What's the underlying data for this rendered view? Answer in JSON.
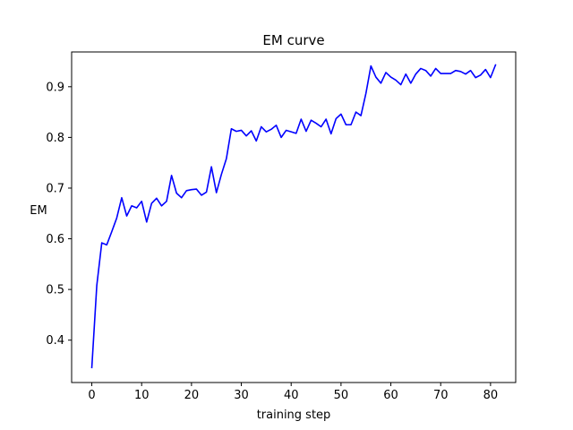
{
  "chart_data": {
    "type": "line",
    "title": "EM curve",
    "xlabel": "training step",
    "ylabel": "EM",
    "xlim": [
      -4.05,
      85.05
    ],
    "ylim": [
      0.3164,
      0.9686
    ],
    "xticks": [
      0,
      10,
      20,
      30,
      40,
      50,
      60,
      70,
      80
    ],
    "yticks": [
      0.4,
      0.5,
      0.6,
      0.7,
      0.8,
      0.9
    ],
    "ytick_labels": [
      "0.4",
      "0.5",
      "0.6",
      "0.7",
      "0.8",
      "0.9"
    ],
    "grid": false,
    "series": [
      {
        "color": "#0000ff",
        "x": [
          0,
          1,
          2,
          3,
          4,
          5,
          6,
          7,
          8,
          9,
          10,
          11,
          12,
          13,
          14,
          15,
          16,
          17,
          18,
          19,
          20,
          21,
          22,
          23,
          24,
          25,
          26,
          27,
          28,
          29,
          30,
          31,
          32,
          33,
          34,
          35,
          36,
          37,
          38,
          39,
          40,
          41,
          42,
          43,
          44,
          45,
          46,
          47,
          48,
          49,
          50,
          51,
          52,
          53,
          54,
          55,
          56,
          57,
          58,
          59,
          60,
          61,
          62,
          63,
          64,
          65,
          66,
          67,
          68,
          69,
          70,
          71,
          72,
          73,
          74,
          75,
          76,
          77,
          78,
          79,
          80,
          81
        ],
        "y": [
          0.346,
          0.508,
          0.592,
          0.588,
          0.614,
          0.641,
          0.681,
          0.645,
          0.665,
          0.661,
          0.674,
          0.633,
          0.67,
          0.68,
          0.665,
          0.674,
          0.725,
          0.69,
          0.681,
          0.695,
          0.697,
          0.698,
          0.686,
          0.692,
          0.742,
          0.691,
          0.727,
          0.758,
          0.817,
          0.812,
          0.814,
          0.803,
          0.813,
          0.793,
          0.821,
          0.811,
          0.816,
          0.824,
          0.8,
          0.814,
          0.811,
          0.808,
          0.836,
          0.812,
          0.834,
          0.828,
          0.821,
          0.836,
          0.807,
          0.837,
          0.846,
          0.825,
          0.825,
          0.85,
          0.843,
          0.887,
          0.941,
          0.919,
          0.907,
          0.928,
          0.919,
          0.913,
          0.904,
          0.925,
          0.907,
          0.925,
          0.936,
          0.932,
          0.921,
          0.936,
          0.926,
          0.926,
          0.926,
          0.932,
          0.93,
          0.925,
          0.932,
          0.918,
          0.923,
          0.934,
          0.918,
          0.943
        ]
      }
    ]
  }
}
